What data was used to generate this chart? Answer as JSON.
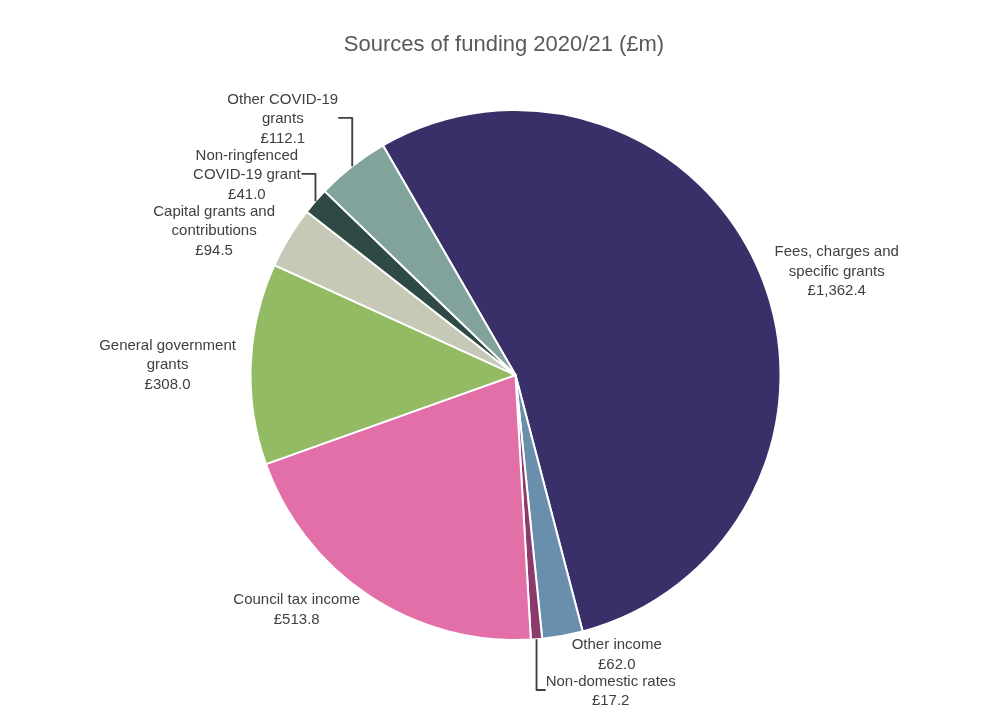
{
  "chart_data": {
    "type": "pie",
    "title": "Sources of funding 2020/21 (£m)",
    "categories": [
      "Fees, charges and specific grants",
      "Other income",
      "Non-domestic rates",
      "Council tax income",
      "General government grants",
      "Capital grants and contributions",
      "Non-ringfenced COVID-19 grant",
      "Other COVID-19 grants"
    ],
    "values": [
      1362.4,
      62.0,
      17.2,
      513.8,
      308.0,
      94.5,
      41.0,
      112.1
    ],
    "value_labels": [
      "£1,362.4",
      "£62.0",
      "£17.2",
      "£513.8",
      "£308.0",
      "£94.5",
      "£41.0",
      "£112.1"
    ],
    "colors": [
      "#3a3069",
      "#6a8fad",
      "#8b3a6b",
      "#e36fa8",
      "#92bb63",
      "#c5c9b5",
      "#2f4a44",
      "#82a39b"
    ],
    "legend": false
  }
}
